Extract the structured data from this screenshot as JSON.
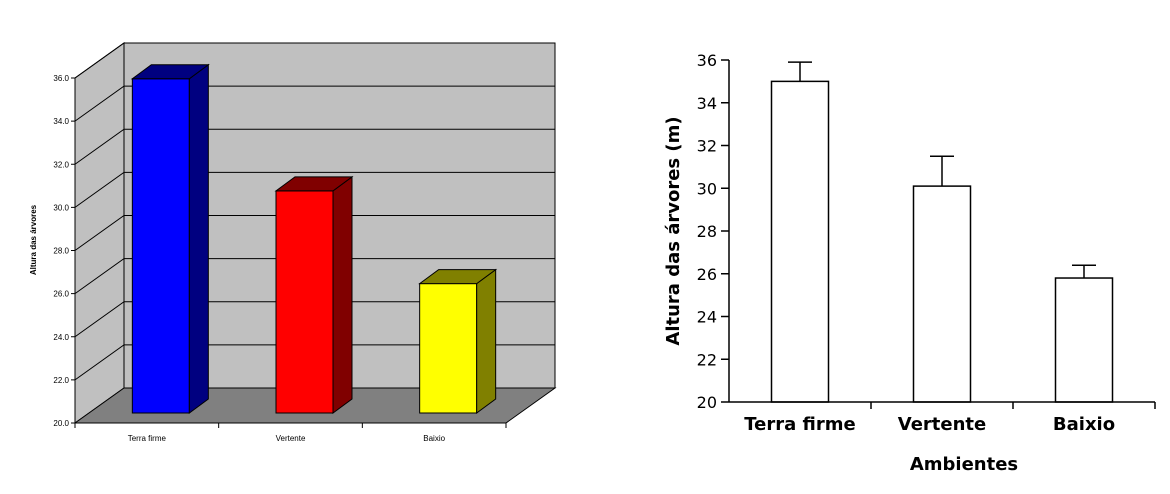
{
  "chart_data": [
    {
      "type": "bar",
      "style": "3d",
      "categories": [
        "Terra firme",
        "Vertente",
        "Baixio"
      ],
      "values": [
        35.5,
        30.3,
        26.0
      ],
      "colors": [
        "#0000ff",
        "#ff0000",
        "#ffff00"
      ],
      "side_colors": [
        "#000080",
        "#800000",
        "#808000"
      ],
      "ylabel": "Altura das árvores",
      "ylim": [
        20.0,
        36.0
      ],
      "yticks": [
        "20.0",
        "22.0",
        "24.0",
        "26.0",
        "28.0",
        "30.0",
        "32.0",
        "34.0",
        "36.0"
      ],
      "grid": true,
      "wall_color": "#c0c0c0",
      "floor_color": "#808080"
    },
    {
      "type": "bar",
      "categories": [
        "Terra firme",
        "Vertente",
        "Baixio"
      ],
      "values": [
        35.0,
        30.1,
        25.8
      ],
      "errors": [
        0.9,
        1.4,
        0.6
      ],
      "xlabel": "Ambientes",
      "ylabel": "Altura das árvores (m)",
      "ylim": [
        20,
        36
      ],
      "yticks": [
        "20",
        "22",
        "24",
        "26",
        "28",
        "30",
        "32",
        "34",
        "36"
      ],
      "bar_fill": "#ffffff",
      "bar_edge": "#000000"
    }
  ]
}
